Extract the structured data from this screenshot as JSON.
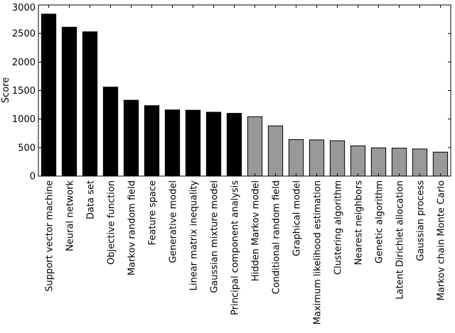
{
  "chart_data": {
    "type": "bar",
    "ylabel": "Score",
    "xlabel": "",
    "title": "",
    "ylim": [
      0,
      3000
    ],
    "yticks": [
      0,
      500,
      1000,
      1500,
      2000,
      2500,
      3000
    ],
    "grid": false,
    "colors": {
      "group_a": "#000000",
      "group_b": "#999999",
      "edge": "#000000"
    },
    "categories": [
      "Support vector machine",
      "Neural network",
      "Data set",
      "Objective function",
      "Markov random field",
      "Feature space",
      "Generative model",
      "Linear matrix inequality",
      "Gaussian mixture model",
      "Principal component analysis",
      "Hidden Markov model",
      "Conditional random field",
      "Graphical model",
      "Maximum likelihood estimation",
      "Clustering algorithm",
      "Nearest neighbors",
      "Genetic algorithm",
      "Latent Dirichlet allocation",
      "Gaussian process",
      "Markov chain Monte Carlo"
    ],
    "values": [
      2840,
      2610,
      2530,
      1560,
      1330,
      1235,
      1160,
      1155,
      1120,
      1100,
      1040,
      880,
      640,
      635,
      620,
      530,
      495,
      490,
      475,
      420
    ],
    "bar_groups": [
      "a",
      "a",
      "a",
      "a",
      "a",
      "a",
      "a",
      "a",
      "a",
      "a",
      "b",
      "b",
      "b",
      "b",
      "b",
      "b",
      "b",
      "b",
      "b",
      "b"
    ]
  }
}
